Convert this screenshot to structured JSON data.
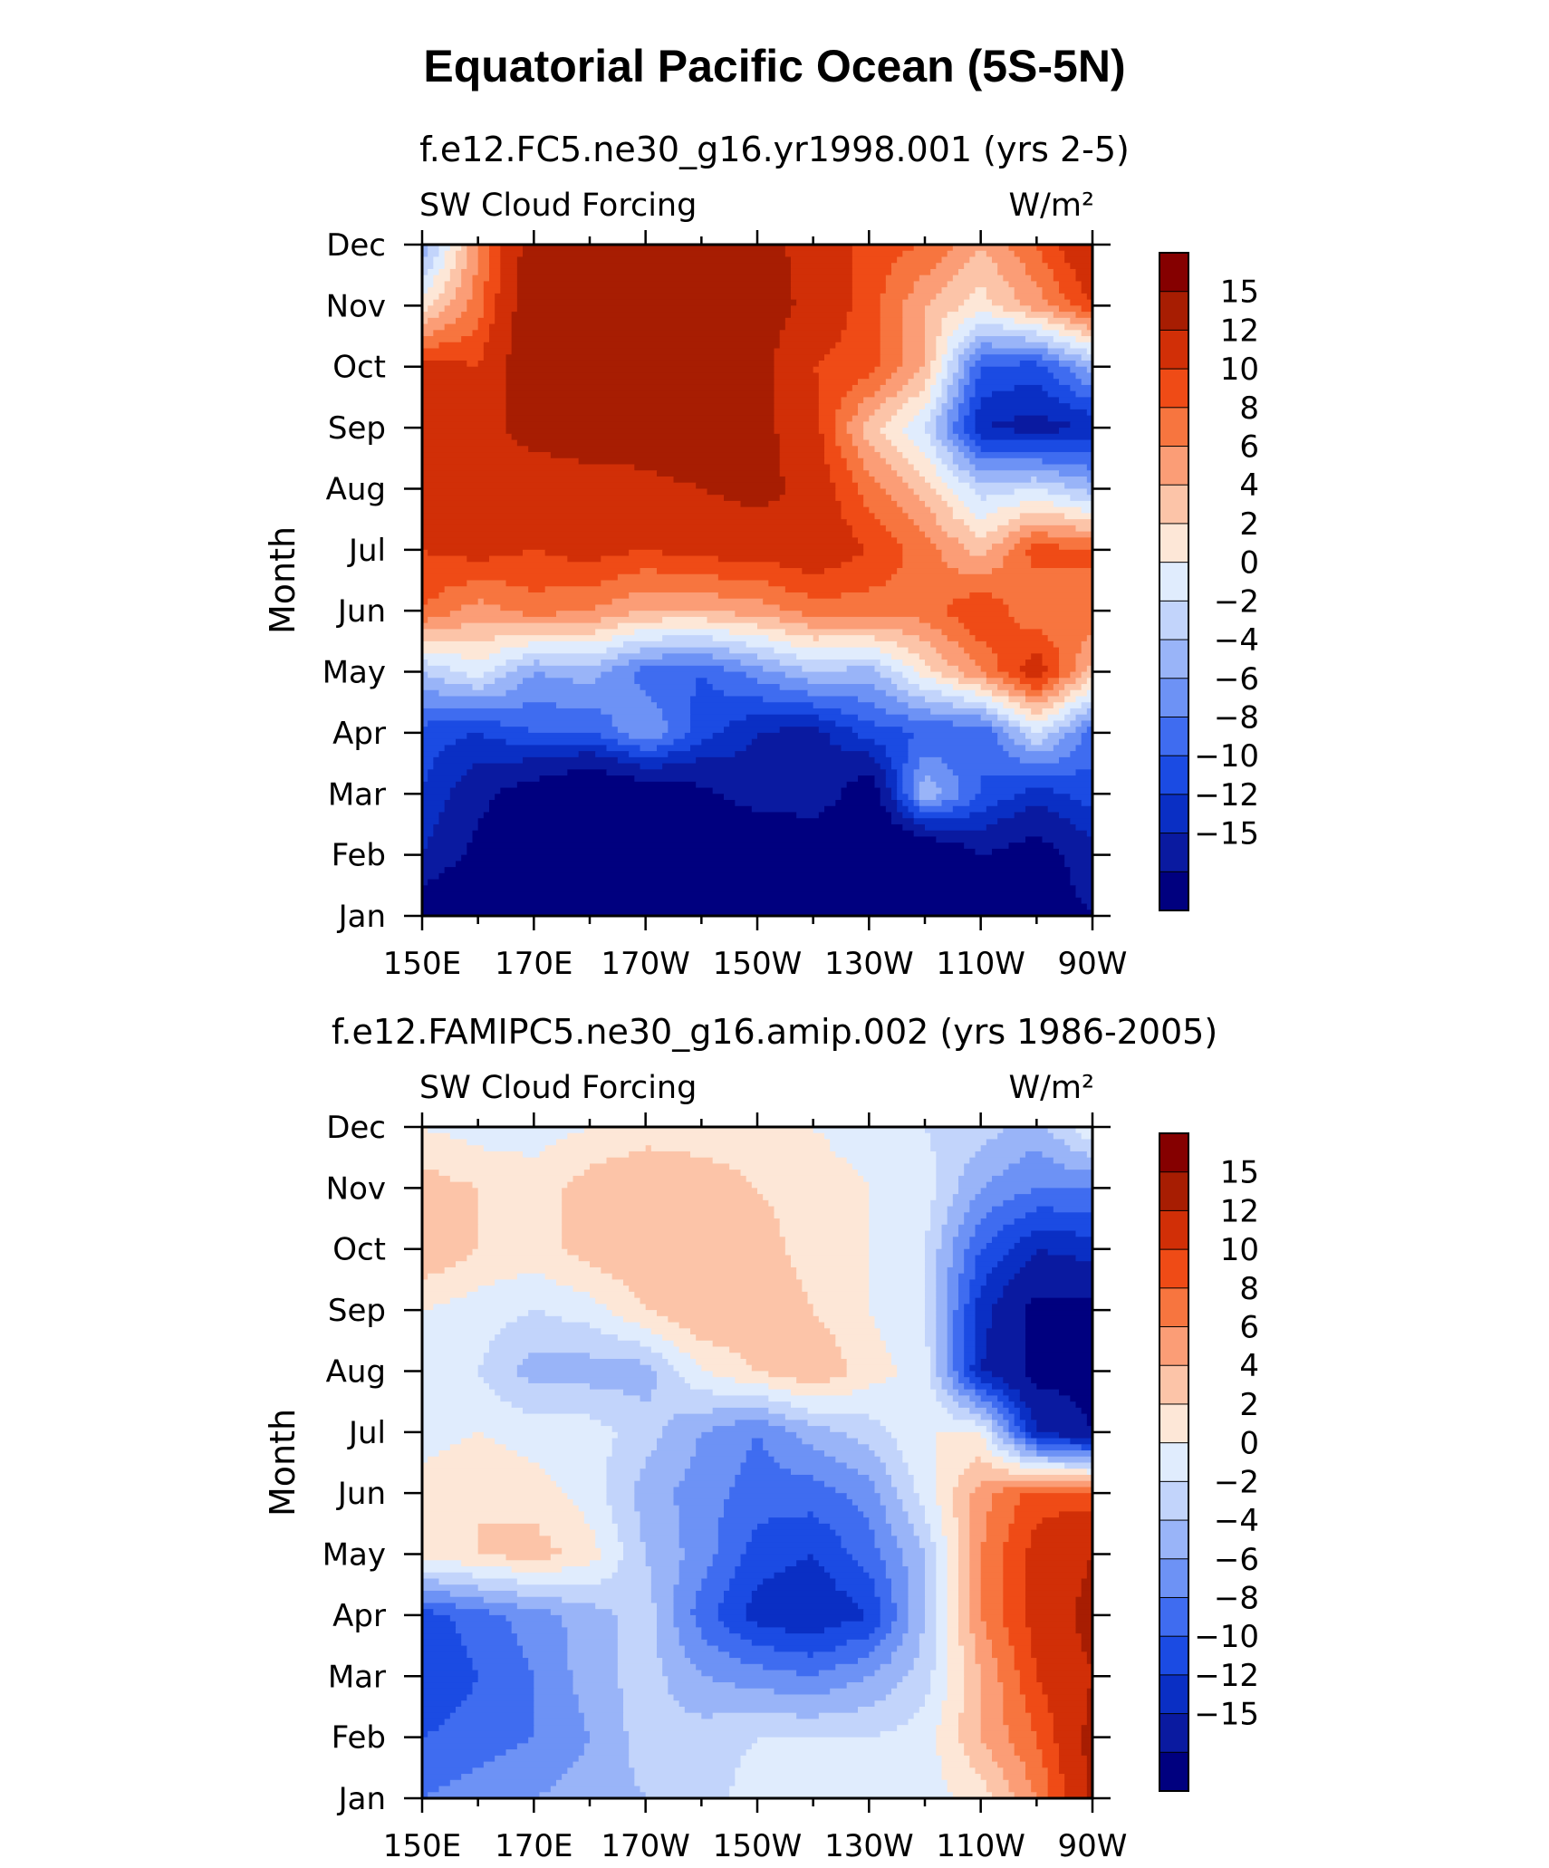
{
  "title": "Equatorial Pacific Ocean (5S-5N)",
  "colors": {
    "levels": [
      "#00007f",
      "#0a1aa0",
      "#0a2fc4",
      "#1b4be3",
      "#3f6cf0",
      "#6d92f5",
      "#99b4f8",
      "#c2d4fb",
      "#e0ecfd",
      "#fde7d7",
      "#fcc4a8",
      "#fb9d76",
      "#f7753f",
      "#ef4b16",
      "#d12f07",
      "#a71d02",
      "#850000"
    ]
  },
  "chart_data": [
    {
      "type": "heatmap",
      "subtitle": "f.e12.FC5.ne30_g16.yr1998.001 (yrs 2-5)",
      "left_label": "SW Cloud Forcing",
      "right_label": "W/m²",
      "ylabel": "Month",
      "xticks": [
        "150E",
        "170E",
        "170W",
        "150W",
        "130W",
        "110W",
        "90W"
      ],
      "yticks": [
        "Jan",
        "Feb",
        "Mar",
        "Apr",
        "May",
        "Jun",
        "Jul",
        "Aug",
        "Sep",
        "Oct",
        "Nov",
        "Dec"
      ],
      "xlim": [
        150,
        270
      ],
      "colorbar_labels": [
        "15",
        "12",
        "10",
        "8",
        "6",
        "4",
        "2",
        "0",
        "-2",
        "-4",
        "-6",
        "-8",
        "-10",
        "-12",
        "-15"
      ],
      "levels": [
        -15,
        -12,
        -10,
        -8,
        -6,
        -4,
        -2,
        0,
        2,
        4,
        6,
        8,
        10,
        12,
        15
      ],
      "lon": [
        150,
        160,
        170,
        180,
        190,
        200,
        210,
        220,
        230,
        240,
        250,
        260,
        270
      ],
      "values": [
        [
          -18,
          -20,
          -22,
          -22,
          -20,
          -20,
          -20,
          -20,
          -20,
          -20,
          -16,
          -17,
          -15
        ],
        [
          -12,
          -16,
          -20,
          -20,
          -20,
          -20,
          -20,
          -20,
          -20,
          -20,
          -15,
          -17,
          -13
        ],
        [
          -10,
          -14,
          -17,
          -20,
          -18,
          -16,
          -13,
          -12,
          -18,
          -2,
          -8,
          -11,
          -9
        ],
        [
          -9,
          -10,
          -8,
          -8,
          -4,
          -9,
          -12,
          -13,
          -9,
          -8,
          -8,
          0,
          -7
        ],
        [
          -2,
          1,
          -4,
          -3,
          -7,
          -8,
          -5,
          -2,
          -3,
          3,
          8,
          14,
          5
        ],
        [
          10,
          7,
          9,
          8,
          6,
          6,
          7,
          9,
          9,
          9,
          12,
          8,
          10
        ],
        [
          12,
          13,
          12,
          13,
          12,
          13,
          13,
          14,
          12,
          9,
          5,
          11,
          10
        ],
        [
          13,
          12,
          12,
          13,
          14,
          15,
          16,
          14,
          9,
          5,
          -1,
          0,
          -3
        ],
        [
          12,
          13,
          17,
          18,
          17,
          18,
          16,
          13,
          5,
          0,
          -12,
          -13,
          -12
        ],
        [
          13,
          12,
          18,
          17,
          18,
          17,
          16,
          12,
          11,
          6,
          -8,
          -9,
          -3
        ],
        [
          3,
          9,
          18,
          19,
          18,
          18,
          17,
          14,
          11,
          6,
          3,
          7,
          12
        ],
        [
          -4,
          8,
          17,
          18,
          19,
          17,
          16,
          14,
          11,
          10,
          6,
          10,
          15
        ]
      ]
    },
    {
      "type": "heatmap",
      "subtitle": "f.e12.FAMIPC5.ne30_g16.amip.002 (yrs 1986-2005)",
      "left_label": "SW Cloud Forcing",
      "right_label": "W/m²",
      "ylabel": "Month",
      "xticks": [
        "150E",
        "170E",
        "170W",
        "150W",
        "130W",
        "110W",
        "90W"
      ],
      "yticks": [
        "Jan",
        "Feb",
        "Mar",
        "Apr",
        "May",
        "Jun",
        "Jul",
        "Aug",
        "Sep",
        "Oct",
        "Nov",
        "Dec"
      ],
      "xlim": [
        150,
        270
      ],
      "colorbar_labels": [
        "15",
        "12",
        "10",
        "8",
        "6",
        "4",
        "2",
        "0",
        "-2",
        "-4",
        "-6",
        "-8",
        "-10",
        "-12",
        "-15"
      ],
      "levels": [
        -15,
        -12,
        -10,
        -8,
        -6,
        -4,
        -2,
        0,
        2,
        4,
        6,
        8,
        10,
        12,
        15
      ],
      "lon": [
        150,
        160,
        170,
        180,
        190,
        200,
        210,
        220,
        230,
        240,
        250,
        260,
        270
      ],
      "values": [
        [
          -6,
          -5,
          -4,
          -3,
          -2,
          -1,
          1,
          2,
          2,
          1,
          3,
          8,
          16
        ],
        [
          -8,
          -7,
          -6,
          -4,
          -1,
          -1,
          0,
          0,
          0,
          1,
          6,
          10,
          16
        ],
        [
          -10,
          -8,
          -6,
          -3,
          -1,
          -4,
          -5,
          -6,
          -4,
          -1,
          6,
          12,
          15
        ],
        [
          -9,
          -7,
          -5,
          -3,
          -1,
          -7,
          -11,
          -12,
          -10,
          -2,
          8,
          13,
          16
        ],
        [
          3,
          4,
          5,
          3,
          -2,
          -5,
          -9,
          -10,
          -7,
          -2,
          8,
          13,
          15
        ],
        [
          3,
          4,
          3,
          1,
          -3,
          -5,
          -7,
          -7,
          -5,
          1,
          7,
          11,
          11
        ],
        [
          1,
          2,
          1,
          1,
          -1,
          -4,
          -6,
          -3,
          -1,
          2,
          2,
          -12,
          -15
        ],
        [
          1,
          0,
          -3,
          -3,
          -3,
          2,
          4,
          6,
          3,
          1,
          -12,
          -16,
          -16
        ],
        [
          2,
          1,
          0,
          1,
          4,
          6,
          6,
          4,
          2,
          0,
          -11,
          -16,
          -16
        ],
        [
          6,
          4,
          3,
          5,
          6,
          6,
          5,
          3,
          2,
          0,
          -8,
          -12,
          -11
        ],
        [
          5,
          4,
          3,
          5,
          6,
          5,
          4,
          3,
          2,
          1,
          -4,
          -6,
          -6
        ],
        [
          2,
          1,
          1,
          2,
          3,
          3,
          3,
          2,
          1,
          0,
          -1,
          -3,
          2
        ]
      ]
    }
  ]
}
